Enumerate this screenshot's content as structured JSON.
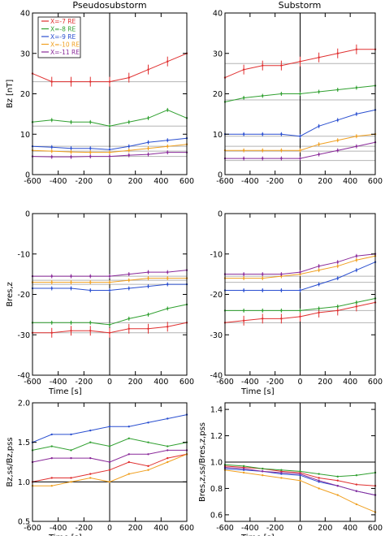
{
  "colors": {
    "red": "#e03030",
    "green": "#30a030",
    "blue": "#2a4fd0",
    "orange": "#f0a020",
    "purple": "#8a2a9a",
    "ref_line": "#b4b4b4"
  },
  "figure": {
    "column_titles": [
      "Pseudosubstorm",
      "Substorm"
    ],
    "xlabel": "Time [s]",
    "ylabels": [
      "Bz [nT]",
      "Bres,z",
      "Bz,ss/Bz,pss",
      "Bres,z,ss/Bres,z,pss"
    ],
    "legend": [
      "X=-7 RE",
      "X=-8 RE",
      "X=-9 RE",
      "X=-10 RE",
      "X=-11 RE"
    ]
  },
  "chart_data": [
    {
      "id": "bz_pseudo",
      "type": "line",
      "title": "Pseudosubstorm",
      "xlabel": "",
      "ylabel": "Bz [nT]",
      "xlim": [
        -600,
        600
      ],
      "ylim": [
        0,
        40
      ],
      "xticks": [
        -600,
        -400,
        -200,
        0,
        200,
        400,
        600
      ],
      "yticks": [
        0,
        10,
        20,
        30,
        40
      ],
      "legend_position": "top-left",
      "reference_lines": [
        4.5,
        5.8,
        7.0,
        12.0,
        23.0
      ],
      "vertical_line": 0,
      "series": [
        {
          "name": "X=-7 RE",
          "color": "red",
          "errorbars": true,
          "x": [
            -600,
            -450,
            -300,
            -150,
            0,
            150,
            300,
            450,
            600
          ],
          "y": [
            25,
            23,
            23,
            23,
            23,
            24,
            26,
            28,
            30
          ]
        },
        {
          "name": "X=-8 RE",
          "color": "green",
          "errorbars": true,
          "x": [
            -600,
            -450,
            -300,
            -150,
            0,
            150,
            300,
            450,
            600
          ],
          "y": [
            13,
            13.5,
            13,
            13,
            12,
            13,
            14,
            16,
            14
          ]
        },
        {
          "name": "X=-9 RE",
          "color": "blue",
          "errorbars": true,
          "x": [
            -600,
            -450,
            -300,
            -150,
            0,
            150,
            300,
            450,
            600
          ],
          "y": [
            7,
            6.8,
            6.5,
            6.5,
            6.2,
            7,
            8,
            8.5,
            9
          ]
        },
        {
          "name": "X=-10 RE",
          "color": "orange",
          "errorbars": true,
          "x": [
            -600,
            -450,
            -300,
            -150,
            0,
            150,
            300,
            450,
            600
          ],
          "y": [
            6,
            5.8,
            5.6,
            5.5,
            5.5,
            6,
            6.5,
            7,
            7.5
          ]
        },
        {
          "name": "X=-11 RE",
          "color": "purple",
          "errorbars": true,
          "x": [
            -600,
            -450,
            -300,
            -150,
            0,
            150,
            300,
            450,
            600
          ],
          "y": [
            4.5,
            4.4,
            4.4,
            4.5,
            4.5,
            4.8,
            5,
            5.5,
            5.5
          ]
        }
      ]
    },
    {
      "id": "bz_sub",
      "type": "line",
      "title": "Substorm",
      "xlabel": "",
      "ylabel": "",
      "xlim": [
        -600,
        600
      ],
      "ylim": [
        0,
        40
      ],
      "xticks": [
        -600,
        -400,
        -200,
        0,
        200,
        400,
        600
      ],
      "yticks": [
        0,
        10,
        20,
        30,
        40
      ],
      "reference_lines": [
        3.5,
        5.8,
        7.0,
        9.5,
        18.5,
        27.5
      ],
      "vertical_line": 0,
      "series": [
        {
          "name": "X=-7 RE",
          "color": "red",
          "errorbars": true,
          "x": [
            -600,
            -450,
            -300,
            -150,
            0,
            150,
            300,
            450,
            600
          ],
          "y": [
            24,
            26,
            27,
            27,
            28,
            29,
            30,
            31,
            31
          ]
        },
        {
          "name": "X=-8 RE",
          "color": "green",
          "errorbars": true,
          "x": [
            -600,
            -450,
            -300,
            -150,
            0,
            150,
            300,
            450,
            600
          ],
          "y": [
            18,
            19,
            19.5,
            20,
            20,
            20.5,
            21,
            21.5,
            22
          ]
        },
        {
          "name": "X=-9 RE",
          "color": "blue",
          "errorbars": true,
          "x": [
            -600,
            -450,
            -300,
            -150,
            0,
            150,
            300,
            450,
            600
          ],
          "y": [
            10,
            10,
            10,
            10,
            9.5,
            12,
            13.5,
            15,
            16
          ]
        },
        {
          "name": "X=-10 RE",
          "color": "orange",
          "errorbars": true,
          "x": [
            -600,
            -450,
            -300,
            -150,
            0,
            150,
            300,
            450,
            600
          ],
          "y": [
            6,
            6,
            6,
            6,
            6,
            7.5,
            8.5,
            9.5,
            10
          ]
        },
        {
          "name": "X=-11 RE",
          "color": "purple",
          "errorbars": true,
          "x": [
            -600,
            -450,
            -300,
            -150,
            0,
            150,
            300,
            450,
            600
          ],
          "y": [
            4,
            4,
            4,
            4,
            4,
            5,
            6,
            7,
            8
          ]
        }
      ]
    },
    {
      "id": "bres_pseudo",
      "type": "line",
      "xlabel": "Time [s]",
      "ylabel": "Bres,z",
      "xlim": [
        -600,
        600
      ],
      "ylim": [
        -40,
        0
      ],
      "xticks": [
        -600,
        -400,
        -200,
        0,
        200,
        400,
        600
      ],
      "yticks": [
        -40,
        -30,
        -20,
        -10,
        0
      ],
      "reference_lines": [
        -15.5,
        -16.5,
        -17.5,
        -27.0,
        -29.5
      ],
      "vertical_line": 0,
      "series": [
        {
          "name": "X=-7 RE",
          "color": "red",
          "errorbars": true,
          "x": [
            -600,
            -450,
            -300,
            -150,
            0,
            150,
            300,
            450,
            600
          ],
          "y": [
            -29.5,
            -29.5,
            -29,
            -29,
            -29.5,
            -28.5,
            -28.5,
            -28,
            -27
          ]
        },
        {
          "name": "X=-8 RE",
          "color": "green",
          "errorbars": true,
          "x": [
            -600,
            -450,
            -300,
            -150,
            0,
            150,
            300,
            450,
            600
          ],
          "y": [
            -27,
            -27,
            -27,
            -27,
            -27.5,
            -26,
            -25,
            -23.5,
            -22.5
          ]
        },
        {
          "name": "X=-9 RE",
          "color": "blue",
          "errorbars": true,
          "x": [
            -600,
            -450,
            -300,
            -150,
            0,
            150,
            300,
            450,
            600
          ],
          "y": [
            -18.5,
            -18.5,
            -18.5,
            -19,
            -19,
            -18.5,
            -18,
            -17.5,
            -17.5
          ]
        },
        {
          "name": "X=-10 RE",
          "color": "orange",
          "errorbars": true,
          "x": [
            -600,
            -450,
            -300,
            -150,
            0,
            150,
            300,
            450,
            600
          ],
          "y": [
            -17,
            -17,
            -17,
            -17,
            -17,
            -16.5,
            -16,
            -16,
            -16
          ]
        },
        {
          "name": "X=-11 RE",
          "color": "purple",
          "errorbars": true,
          "x": [
            -600,
            -450,
            -300,
            -150,
            0,
            150,
            300,
            450,
            600
          ],
          "y": [
            -15.5,
            -15.5,
            -15.5,
            -15.5,
            -15.5,
            -15,
            -14.5,
            -14.5,
            -14
          ]
        }
      ]
    },
    {
      "id": "bres_sub",
      "type": "line",
      "xlabel": "Time [s]",
      "ylabel": "",
      "xlim": [
        -600,
        600
      ],
      "ylim": [
        -40,
        0
      ],
      "xticks": [
        -600,
        -400,
        -200,
        0,
        200,
        400,
        600
      ],
      "yticks": [
        -40,
        -30,
        -20,
        -10,
        0
      ],
      "reference_lines": [
        -15.5,
        -17.0,
        -19.0,
        -24.0,
        -27.0
      ],
      "vertical_line": 0,
      "series": [
        {
          "name": "X=-7 RE",
          "color": "red",
          "errorbars": true,
          "x": [
            -600,
            -450,
            -300,
            -150,
            0,
            150,
            300,
            450,
            600
          ],
          "y": [
            -27,
            -26.5,
            -26,
            -26,
            -25.5,
            -24.5,
            -24,
            -23,
            -22
          ]
        },
        {
          "name": "X=-8 RE",
          "color": "green",
          "errorbars": true,
          "x": [
            -600,
            -450,
            -300,
            -150,
            0,
            150,
            300,
            450,
            600
          ],
          "y": [
            -24,
            -24,
            -24,
            -24,
            -24,
            -23.5,
            -23,
            -22,
            -21
          ]
        },
        {
          "name": "X=-9 RE",
          "color": "blue",
          "errorbars": true,
          "x": [
            -600,
            -450,
            -300,
            -150,
            0,
            150,
            300,
            450,
            600
          ],
          "y": [
            -19,
            -19,
            -19,
            -19,
            -19,
            -17.5,
            -16,
            -14,
            -12
          ]
        },
        {
          "name": "X=-10 RE",
          "color": "orange",
          "errorbars": true,
          "x": [
            -600,
            -450,
            -300,
            -150,
            0,
            150,
            300,
            450,
            600
          ],
          "y": [
            -16,
            -16,
            -16,
            -15.5,
            -15,
            -14,
            -13,
            -11.5,
            -10.5
          ]
        },
        {
          "name": "X=-11 RE",
          "color": "purple",
          "errorbars": true,
          "x": [
            -600,
            -450,
            -300,
            -150,
            0,
            150,
            300,
            450,
            600
          ],
          "y": [
            -15,
            -15,
            -15,
            -15,
            -14.5,
            -13,
            -12,
            -10.5,
            -10
          ]
        }
      ]
    },
    {
      "id": "ratio_pseudo",
      "type": "line",
      "xlabel": "Time [s]",
      "ylabel": "Bz,ss/Bz,pss",
      "xlim": [
        -600,
        600
      ],
      "ylim": [
        0.5,
        2.0
      ],
      "xticks": [
        -600,
        -400,
        -200,
        0,
        200,
        400,
        600
      ],
      "yticks": [
        0.5,
        1.0,
        1.5,
        2.0
      ],
      "tick_decimals": 1,
      "horizontal_line": 1.0,
      "vertical_line": 0,
      "series": [
        {
          "name": "X=-7 RE",
          "color": "red",
          "errorbars": false,
          "x": [
            -600,
            -450,
            -300,
            -150,
            0,
            150,
            300,
            450,
            600
          ],
          "y": [
            1.0,
            1.05,
            1.05,
            1.1,
            1.15,
            1.25,
            1.2,
            1.3,
            1.35
          ]
        },
        {
          "name": "X=-8 RE",
          "color": "green",
          "errorbars": false,
          "x": [
            -600,
            -450,
            -300,
            -150,
            0,
            150,
            300,
            450,
            600
          ],
          "y": [
            1.4,
            1.45,
            1.4,
            1.5,
            1.45,
            1.55,
            1.5,
            1.45,
            1.5
          ]
        },
        {
          "name": "X=-9 RE",
          "color": "blue",
          "errorbars": false,
          "x": [
            -600,
            -450,
            -300,
            -150,
            0,
            150,
            300,
            450,
            600
          ],
          "y": [
            1.5,
            1.6,
            1.6,
            1.65,
            1.7,
            1.7,
            1.75,
            1.8,
            1.85
          ]
        },
        {
          "name": "X=-10 RE",
          "color": "orange",
          "errorbars": false,
          "x": [
            -600,
            -450,
            -300,
            -150,
            0,
            150,
            300,
            450,
            600
          ],
          "y": [
            0.95,
            0.95,
            1.0,
            1.05,
            1.0,
            1.1,
            1.15,
            1.25,
            1.35
          ]
        },
        {
          "name": "X=-11 RE",
          "color": "purple",
          "errorbars": false,
          "x": [
            -600,
            -450,
            -300,
            -150,
            0,
            150,
            300,
            450,
            600
          ],
          "y": [
            1.25,
            1.3,
            1.3,
            1.3,
            1.25,
            1.35,
            1.35,
            1.4,
            1.4
          ]
        }
      ]
    },
    {
      "id": "ratio_sub",
      "type": "line",
      "xlabel": "Time [s]",
      "ylabel": "Bres,z,ss/Bres,z,pss",
      "xlim": [
        -600,
        600
      ],
      "ylim": [
        0.55,
        1.45
      ],
      "xticks": [
        -600,
        -400,
        -200,
        0,
        200,
        400,
        600
      ],
      "yticks": [
        0.6,
        0.8,
        1.0,
        1.2,
        1.4
      ],
      "tick_decimals": 1,
      "horizontal_line": 1.0,
      "vertical_line": 0,
      "series": [
        {
          "name": "X=-7 RE",
          "color": "red",
          "errorbars": false,
          "x": [
            -600,
            -450,
            -300,
            -150,
            0,
            150,
            300,
            450,
            600
          ],
          "y": [
            0.97,
            0.96,
            0.95,
            0.93,
            0.92,
            0.88,
            0.86,
            0.83,
            0.82
          ]
        },
        {
          "name": "X=-8 RE",
          "color": "green",
          "errorbars": false,
          "x": [
            -600,
            -450,
            -300,
            -150,
            0,
            150,
            300,
            450,
            600
          ],
          "y": [
            0.98,
            0.97,
            0.95,
            0.94,
            0.93,
            0.91,
            0.89,
            0.9,
            0.92
          ]
        },
        {
          "name": "X=-9 RE",
          "color": "blue",
          "errorbars": false,
          "x": [
            -600,
            -450,
            -300,
            -150,
            0,
            150,
            300,
            450,
            600
          ],
          "y": [
            0.95,
            0.94,
            0.93,
            0.91,
            0.9,
            0.85,
            0.82,
            0.78,
            0.75
          ]
        },
        {
          "name": "X=-10 RE",
          "color": "orange",
          "errorbars": false,
          "x": [
            -600,
            -450,
            -300,
            -150,
            0,
            150,
            300,
            450,
            600
          ],
          "y": [
            0.94,
            0.92,
            0.9,
            0.88,
            0.86,
            0.8,
            0.75,
            0.68,
            0.62
          ]
        },
        {
          "name": "X=-11 RE",
          "color": "purple",
          "errorbars": false,
          "x": [
            -600,
            -450,
            -300,
            -150,
            0,
            150,
            300,
            450,
            600
          ],
          "y": [
            0.96,
            0.95,
            0.93,
            0.92,
            0.91,
            0.86,
            0.82,
            0.78,
            0.75
          ]
        }
      ]
    }
  ]
}
